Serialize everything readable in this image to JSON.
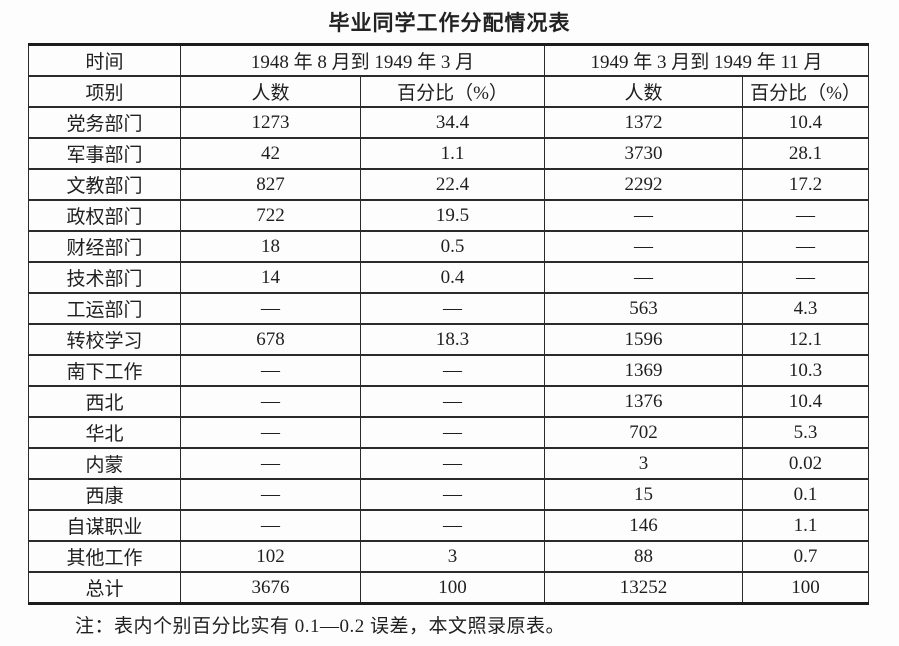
{
  "title": "毕业同学工作分配情况表",
  "table": {
    "header": {
      "time_label": "时间",
      "category_label": "项别",
      "period1": "1948 年 8 月到 1949 年 3 月",
      "period2": "1949 年 3 月到 1949 年 11 月",
      "count_label": "人数",
      "percent_label": "百分比（%）"
    },
    "rows": [
      {
        "category": "党务部门",
        "p1_count": "1273",
        "p1_pct": "34.4",
        "p2_count": "1372",
        "p2_pct": "10.4"
      },
      {
        "category": "军事部门",
        "p1_count": "42",
        "p1_pct": "1.1",
        "p2_count": "3730",
        "p2_pct": "28.1"
      },
      {
        "category": "文教部门",
        "p1_count": "827",
        "p1_pct": "22.4",
        "p2_count": "2292",
        "p2_pct": "17.2"
      },
      {
        "category": "政权部门",
        "p1_count": "722",
        "p1_pct": "19.5",
        "p2_count": "—",
        "p2_pct": "—"
      },
      {
        "category": "财经部门",
        "p1_count": "18",
        "p1_pct": "0.5",
        "p2_count": "—",
        "p2_pct": "—"
      },
      {
        "category": "技术部门",
        "p1_count": "14",
        "p1_pct": "0.4",
        "p2_count": "—",
        "p2_pct": "—"
      },
      {
        "category": "工运部门",
        "p1_count": "—",
        "p1_pct": "—",
        "p2_count": "563",
        "p2_pct": "4.3"
      },
      {
        "category": "转校学习",
        "p1_count": "678",
        "p1_pct": "18.3",
        "p2_count": "1596",
        "p2_pct": "12.1"
      },
      {
        "category": "南下工作",
        "p1_count": "—",
        "p1_pct": "—",
        "p2_count": "1369",
        "p2_pct": "10.3"
      },
      {
        "category": "西北",
        "p1_count": "—",
        "p1_pct": "—",
        "p2_count": "1376",
        "p2_pct": "10.4"
      },
      {
        "category": "华北",
        "p1_count": "—",
        "p1_pct": "—",
        "p2_count": "702",
        "p2_pct": "5.3"
      },
      {
        "category": "内蒙",
        "p1_count": "—",
        "p1_pct": "—",
        "p2_count": "3",
        "p2_pct": "0.02"
      },
      {
        "category": "西康",
        "p1_count": "—",
        "p1_pct": "—",
        "p2_count": "15",
        "p2_pct": "0.1"
      },
      {
        "category": "自谋职业",
        "p1_count": "—",
        "p1_pct": "—",
        "p2_count": "146",
        "p2_pct": "1.1"
      },
      {
        "category": "其他工作",
        "p1_count": "102",
        "p1_pct": "3",
        "p2_count": "88",
        "p2_pct": "0.7"
      },
      {
        "category": "总计",
        "p1_count": "3676",
        "p1_pct": "100",
        "p2_count": "13252",
        "p2_pct": "100"
      }
    ]
  },
  "note": "注：表内个别百分比实有 0.1—0.2 误差，本文照录原表。"
}
